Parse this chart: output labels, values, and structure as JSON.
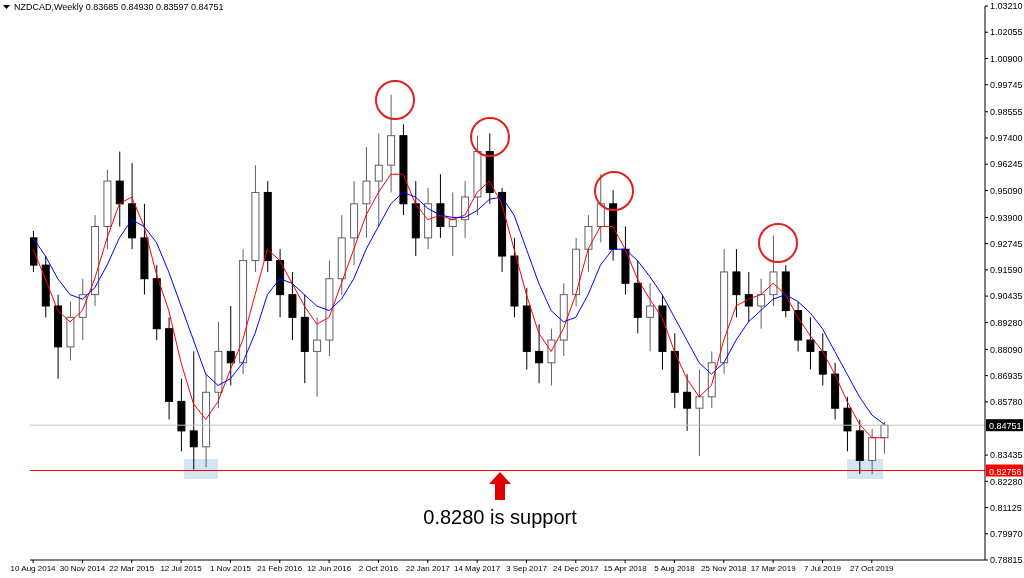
{
  "chart_data": {
    "type": "candlestick",
    "title": "NZDCAD,Weekly  0.83685 0.84930 0.83597 0.84751",
    "x": [
      "2014-08-10",
      "2014-09-07",
      "2014-10-05",
      "2014-11-02",
      "2014-11-30",
      "2014-12-28",
      "2015-01-25",
      "2015-02-22",
      "2015-03-22",
      "2015-04-19",
      "2015-05-17",
      "2015-06-14",
      "2015-07-12",
      "2015-08-09",
      "2015-09-06",
      "2015-10-04",
      "2015-11-01",
      "2015-11-29",
      "2015-12-27",
      "2016-01-24",
      "2016-02-21",
      "2016-03-20",
      "2016-04-17",
      "2016-05-15",
      "2016-06-12",
      "2016-07-10",
      "2016-08-07",
      "2016-09-04",
      "2016-10-02",
      "2016-10-30",
      "2016-11-27",
      "2016-12-25",
      "2017-01-22",
      "2017-02-19",
      "2017-03-19",
      "2017-04-16",
      "2017-05-14",
      "2017-06-11",
      "2017-07-09",
      "2017-08-06",
      "2017-09-03",
      "2017-10-01",
      "2017-10-29",
      "2017-11-26",
      "2017-12-24",
      "2018-01-21",
      "2018-02-18",
      "2018-03-18",
      "2018-04-15",
      "2018-05-13",
      "2018-06-10",
      "2018-07-08",
      "2018-08-05",
      "2018-09-02",
      "2018-09-30",
      "2018-10-28",
      "2018-11-25",
      "2018-12-23",
      "2019-01-20",
      "2019-02-17",
      "2019-03-17",
      "2019-04-14",
      "2019-05-12",
      "2019-06-09",
      "2019-07-07",
      "2019-08-04",
      "2019-09-01",
      "2019-09-29",
      "2019-10-27",
      "2019-11-24"
    ],
    "ohlc": [
      [
        0.93,
        0.933,
        0.915,
        0.918
      ],
      [
        0.918,
        0.922,
        0.895,
        0.9
      ],
      [
        0.9,
        0.905,
        0.868,
        0.882
      ],
      [
        0.882,
        0.902,
        0.876,
        0.895
      ],
      [
        0.895,
        0.912,
        0.885,
        0.905
      ],
      [
        0.905,
        0.94,
        0.9,
        0.935
      ],
      [
        0.935,
        0.96,
        0.925,
        0.955
      ],
      [
        0.955,
        0.968,
        0.935,
        0.945
      ],
      [
        0.945,
        0.963,
        0.925,
        0.93
      ],
      [
        0.93,
        0.945,
        0.905,
        0.912
      ],
      [
        0.912,
        0.918,
        0.885,
        0.89
      ],
      [
        0.89,
        0.895,
        0.85,
        0.858
      ],
      [
        0.858,
        0.868,
        0.836,
        0.845
      ],
      [
        0.845,
        0.88,
        0.828,
        0.838
      ],
      [
        0.838,
        0.87,
        0.829,
        0.862
      ],
      [
        0.862,
        0.893,
        0.855,
        0.88
      ],
      [
        0.88,
        0.9,
        0.865,
        0.875
      ],
      [
        0.875,
        0.925,
        0.87,
        0.92
      ],
      [
        0.92,
        0.962,
        0.915,
        0.95
      ],
      [
        0.95,
        0.955,
        0.915,
        0.92
      ],
      [
        0.92,
        0.925,
        0.895,
        0.905
      ],
      [
        0.905,
        0.915,
        0.885,
        0.895
      ],
      [
        0.895,
        0.905,
        0.866,
        0.88
      ],
      [
        0.88,
        0.895,
        0.86,
        0.885
      ],
      [
        0.885,
        0.92,
        0.878,
        0.912
      ],
      [
        0.912,
        0.94,
        0.905,
        0.93
      ],
      [
        0.93,
        0.955,
        0.918,
        0.945
      ],
      [
        0.945,
        0.97,
        0.93,
        0.955
      ],
      [
        0.955,
        0.976,
        0.935,
        0.962
      ],
      [
        0.962,
        0.993,
        0.95,
        0.975
      ],
      [
        0.975,
        0.98,
        0.94,
        0.945
      ],
      [
        0.945,
        0.955,
        0.922,
        0.93
      ],
      [
        0.93,
        0.952,
        0.925,
        0.945
      ],
      [
        0.945,
        0.958,
        0.93,
        0.935
      ],
      [
        0.935,
        0.95,
        0.922,
        0.938
      ],
      [
        0.938,
        0.955,
        0.93,
        0.948
      ],
      [
        0.948,
        0.975,
        0.94,
        0.968
      ],
      [
        0.968,
        0.976,
        0.945,
        0.95
      ],
      [
        0.95,
        0.952,
        0.915,
        0.922
      ],
      [
        0.922,
        0.93,
        0.895,
        0.9
      ],
      [
        0.9,
        0.908,
        0.872,
        0.88
      ],
      [
        0.88,
        0.892,
        0.866,
        0.875
      ],
      [
        0.875,
        0.89,
        0.865,
        0.885
      ],
      [
        0.885,
        0.91,
        0.878,
        0.905
      ],
      [
        0.905,
        0.93,
        0.9,
        0.925
      ],
      [
        0.925,
        0.94,
        0.915,
        0.935
      ],
      [
        0.935,
        0.958,
        0.928,
        0.945
      ],
      [
        0.945,
        0.951,
        0.92,
        0.925
      ],
      [
        0.925,
        0.935,
        0.905,
        0.91
      ],
      [
        0.91,
        0.92,
        0.888,
        0.895
      ],
      [
        0.895,
        0.91,
        0.88,
        0.9
      ],
      [
        0.9,
        0.905,
        0.872,
        0.88
      ],
      [
        0.88,
        0.888,
        0.855,
        0.862
      ],
      [
        0.862,
        0.87,
        0.845,
        0.855
      ],
      [
        0.855,
        0.872,
        0.834,
        0.86
      ],
      [
        0.86,
        0.88,
        0.855,
        0.875
      ],
      [
        0.875,
        0.925,
        0.87,
        0.915
      ],
      [
        0.915,
        0.925,
        0.895,
        0.905
      ],
      [
        0.905,
        0.915,
        0.893,
        0.9
      ],
      [
        0.9,
        0.912,
        0.89,
        0.905
      ],
      [
        0.905,
        0.931,
        0.9,
        0.915
      ],
      [
        0.915,
        0.918,
        0.895,
        0.898
      ],
      [
        0.898,
        0.902,
        0.88,
        0.885
      ],
      [
        0.885,
        0.895,
        0.872,
        0.88
      ],
      [
        0.88,
        0.888,
        0.865,
        0.87
      ],
      [
        0.87,
        0.875,
        0.85,
        0.855
      ],
      [
        0.855,
        0.86,
        0.836,
        0.845
      ],
      [
        0.845,
        0.85,
        0.826,
        0.832
      ],
      [
        0.832,
        0.846,
        0.826,
        0.842
      ],
      [
        0.842,
        0.849,
        0.835,
        0.84751
      ]
    ],
    "series": [
      {
        "type": "line",
        "color": "#ff0000",
        "values": [
          0.925,
          0.912,
          0.898,
          0.893,
          0.898,
          0.912,
          0.93,
          0.945,
          0.948,
          0.935,
          0.914,
          0.898,
          0.875,
          0.857,
          0.85,
          0.858,
          0.872,
          0.885,
          0.905,
          0.925,
          0.92,
          0.91,
          0.9,
          0.892,
          0.895,
          0.91,
          0.925,
          0.94,
          0.95,
          0.958,
          0.958,
          0.945,
          0.938,
          0.94,
          0.938,
          0.94,
          0.95,
          0.955,
          0.945,
          0.925,
          0.905,
          0.888,
          0.88,
          0.89,
          0.905,
          0.925,
          0.935,
          0.935,
          0.925,
          0.912,
          0.903,
          0.895,
          0.88,
          0.868,
          0.86,
          0.865,
          0.885,
          0.9,
          0.903,
          0.905,
          0.91,
          0.905,
          0.895,
          0.887,
          0.88,
          0.87,
          0.858,
          0.848,
          0.842,
          0.842
        ]
      },
      {
        "type": "line",
        "color": "#0000ff",
        "values": [
          0.93,
          0.922,
          0.912,
          0.905,
          0.903,
          0.908,
          0.918,
          0.93,
          0.938,
          0.935,
          0.928,
          0.915,
          0.9,
          0.885,
          0.87,
          0.865,
          0.868,
          0.875,
          0.888,
          0.905,
          0.912,
          0.91,
          0.905,
          0.9,
          0.898,
          0.903,
          0.912,
          0.925,
          0.935,
          0.945,
          0.95,
          0.948,
          0.943,
          0.94,
          0.939,
          0.939,
          0.942,
          0.947,
          0.948,
          0.94,
          0.925,
          0.91,
          0.898,
          0.893,
          0.895,
          0.905,
          0.918,
          0.925,
          0.925,
          0.92,
          0.913,
          0.905,
          0.895,
          0.885,
          0.875,
          0.87,
          0.875,
          0.885,
          0.893,
          0.898,
          0.903,
          0.905,
          0.902,
          0.897,
          0.89,
          0.88,
          0.87,
          0.86,
          0.852,
          0.848
        ]
      }
    ],
    "marker": "none",
    "xlim": [
      "2014-08-03",
      "2020-07-10"
    ],
    "xticks": [
      {
        "value": "2014-08-10",
        "label": "10 Aug 2014"
      },
      {
        "value": "2014-11-30",
        "label": "30 Nov 2014"
      },
      {
        "value": "2015-03-22",
        "label": "22 Mar 2015"
      },
      {
        "value": "2015-07-12",
        "label": "12 Jul 2015"
      },
      {
        "value": "2015-11-01",
        "label": "1 Nov 2015"
      },
      {
        "value": "2016-02-21",
        "label": "21 Feb 2016"
      },
      {
        "value": "2016-06-12",
        "label": "12 Jun 2016"
      },
      {
        "value": "2016-10-02",
        "label": "2 Oct 2016"
      },
      {
        "value": "2017-01-22",
        "label": "22 Jan 2017"
      },
      {
        "value": "2017-05-14",
        "label": "14 May 2017"
      },
      {
        "value": "2017-09-03",
        "label": "3 Sep 2017"
      },
      {
        "value": "2017-12-24",
        "label": "24 Dec 2017"
      },
      {
        "value": "2018-04-15",
        "label": "15 Apr 2018"
      },
      {
        "value": "2018-08-05",
        "label": "5 Aug 2018"
      },
      {
        "value": "2018-11-25",
        "label": "25 Nov 2018"
      },
      {
        "value": "2019-03-17",
        "label": "17 Mar 2019"
      },
      {
        "value": "2019-07-07",
        "label": "7 Jul 2019"
      },
      {
        "value": "2019-10-27",
        "label": "27 Oct 2019"
      }
    ],
    "ylim": [
      0.78815,
      1.0321
    ],
    "yticks": [
      {
        "value": 1.0321,
        "label": "1.03210"
      },
      {
        "value": 1.02055,
        "label": "1.02055"
      },
      {
        "value": 1.009,
        "label": "1.00900"
      },
      {
        "value": 0.99745,
        "label": "0.99745"
      },
      {
        "value": 0.98555,
        "label": "0.98555"
      },
      {
        "value": 0.974,
        "label": "0.97400"
      },
      {
        "value": 0.96245,
        "label": "0.96245"
      },
      {
        "value": 0.9509,
        "label": "0.95090"
      },
      {
        "value": 0.939,
        "label": "0.93900"
      },
      {
        "value": 0.92745,
        "label": "0.92745"
      },
      {
        "value": 0.9159,
        "label": "0.91590"
      },
      {
        "value": 0.90435,
        "label": "0.90435"
      },
      {
        "value": 0.8928,
        "label": "0.89280"
      },
      {
        "value": 0.8809,
        "label": "0.88090"
      },
      {
        "value": 0.86935,
        "label": "0.86935"
      },
      {
        "value": 0.8578,
        "label": "0.85780"
      },
      {
        "value": 0.83435,
        "label": "0.83435"
      },
      {
        "value": 0.8228,
        "label": "0.82280"
      },
      {
        "value": 0.81125,
        "label": "0.81125"
      },
      {
        "value": 0.7997,
        "label": "0.79970"
      },
      {
        "value": 0.78815,
        "label": "0.78815"
      }
    ],
    "ref_lines": [
      {
        "axis": "y",
        "value": 0.84751,
        "label": "0.84751",
        "color": "#c0c0c0"
      },
      {
        "axis": "y",
        "value": 0.82756,
        "label": "0.82756",
        "color": "#ff0000"
      }
    ],
    "annotations": [
      "0.8280 is support"
    ],
    "legend": false
  }
}
